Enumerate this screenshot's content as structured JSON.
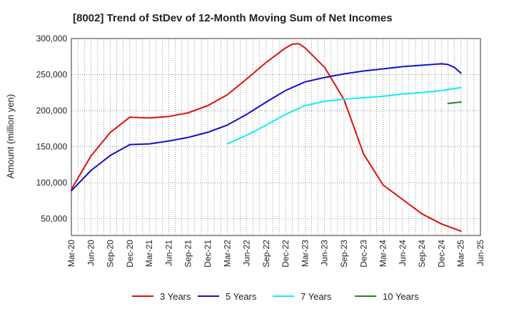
{
  "chart_data": {
    "type": "line",
    "title": "[8002]  Trend of StDev of 12-Month Moving Sum of Net Incomes",
    "xlabel": "",
    "ylabel": "Amount (million yen)",
    "ylim": [
      27000,
      300000
    ],
    "xlim": [
      "Mar-20",
      "Jun-25"
    ],
    "yticks": [
      50000,
      100000,
      150000,
      200000,
      250000,
      300000
    ],
    "ytick_labels": [
      "50,000",
      "100,000",
      "150,000",
      "200,000",
      "250,000",
      "300,000"
    ],
    "xtick_labels": [
      "Mar-20",
      "Jun-20",
      "Sep-20",
      "Dec-20",
      "Mar-21",
      "Jun-21",
      "Sep-21",
      "Dec-21",
      "Mar-22",
      "Jun-22",
      "Sep-22",
      "Dec-22",
      "Mar-23",
      "Jun-23",
      "Sep-23",
      "Dec-23",
      "Mar-24",
      "Jun-24",
      "Sep-24",
      "Dec-24",
      "Mar-25",
      "Jun-25"
    ],
    "grid": true,
    "legend_position": "bottom",
    "series": [
      {
        "name": "3 Years",
        "color": "#dd1111",
        "points": [
          [
            "Mar-20",
            91000
          ],
          [
            "Jun-20",
            137000
          ],
          [
            "Sep-20",
            170000
          ],
          [
            "Dec-20",
            191000
          ],
          [
            "Mar-21",
            190000
          ],
          [
            "Jun-21",
            192000
          ],
          [
            "Sep-21",
            197000
          ],
          [
            "Dec-21",
            207000
          ],
          [
            "Mar-22",
            222000
          ],
          [
            "Jun-22",
            244000
          ],
          [
            "Sep-22",
            267000
          ],
          [
            "Dec-22",
            287000
          ],
          [
            "Jan-23",
            292000
          ],
          [
            "Feb-23",
            293000
          ],
          [
            "Mar-23",
            287000
          ],
          [
            "Jun-23",
            260000
          ],
          [
            "Sep-23",
            215000
          ],
          [
            "Dec-23",
            140000
          ],
          [
            "Mar-24",
            97000
          ],
          [
            "Jun-24",
            77000
          ],
          [
            "Sep-24",
            57000
          ],
          [
            "Dec-24",
            43000
          ],
          [
            "Mar-25",
            33000
          ]
        ]
      },
      {
        "name": "5 Years",
        "color": "#1111cc",
        "points": [
          [
            "Mar-20",
            89000
          ],
          [
            "Jun-20",
            117000
          ],
          [
            "Sep-20",
            138000
          ],
          [
            "Dec-20",
            153000
          ],
          [
            "Mar-21",
            154000
          ],
          [
            "Jun-21",
            158000
          ],
          [
            "Sep-21",
            163000
          ],
          [
            "Dec-21",
            170000
          ],
          [
            "Mar-22",
            180000
          ],
          [
            "Jun-22",
            195000
          ],
          [
            "Sep-22",
            212000
          ],
          [
            "Dec-22",
            228000
          ],
          [
            "Mar-23",
            240000
          ],
          [
            "Jun-23",
            246000
          ],
          [
            "Sep-23",
            251000
          ],
          [
            "Dec-23",
            255000
          ],
          [
            "Mar-24",
            258000
          ],
          [
            "Jun-24",
            261000
          ],
          [
            "Sep-24",
            263000
          ],
          [
            "Dec-24",
            265000
          ],
          [
            "Jan-25",
            264000
          ],
          [
            "Feb-25",
            260000
          ],
          [
            "Mar-25",
            252000
          ]
        ]
      },
      {
        "name": "7 Years",
        "color": "#11eeee",
        "points": [
          [
            "Mar-22",
            154000
          ],
          [
            "Jun-22",
            166000
          ],
          [
            "Sep-22",
            180000
          ],
          [
            "Dec-22",
            195000
          ],
          [
            "Mar-23",
            207000
          ],
          [
            "Jun-23",
            213000
          ],
          [
            "Sep-23",
            216000
          ],
          [
            "Dec-23",
            218000
          ],
          [
            "Mar-24",
            220000
          ],
          [
            "Jun-24",
            223000
          ],
          [
            "Sep-24",
            225000
          ],
          [
            "Dec-24",
            228000
          ],
          [
            "Mar-25",
            232000
          ]
        ]
      },
      {
        "name": "10 Years",
        "color": "#228822",
        "points": [
          [
            "Jan-25",
            210000
          ],
          [
            "Mar-25",
            212000
          ]
        ]
      }
    ]
  }
}
